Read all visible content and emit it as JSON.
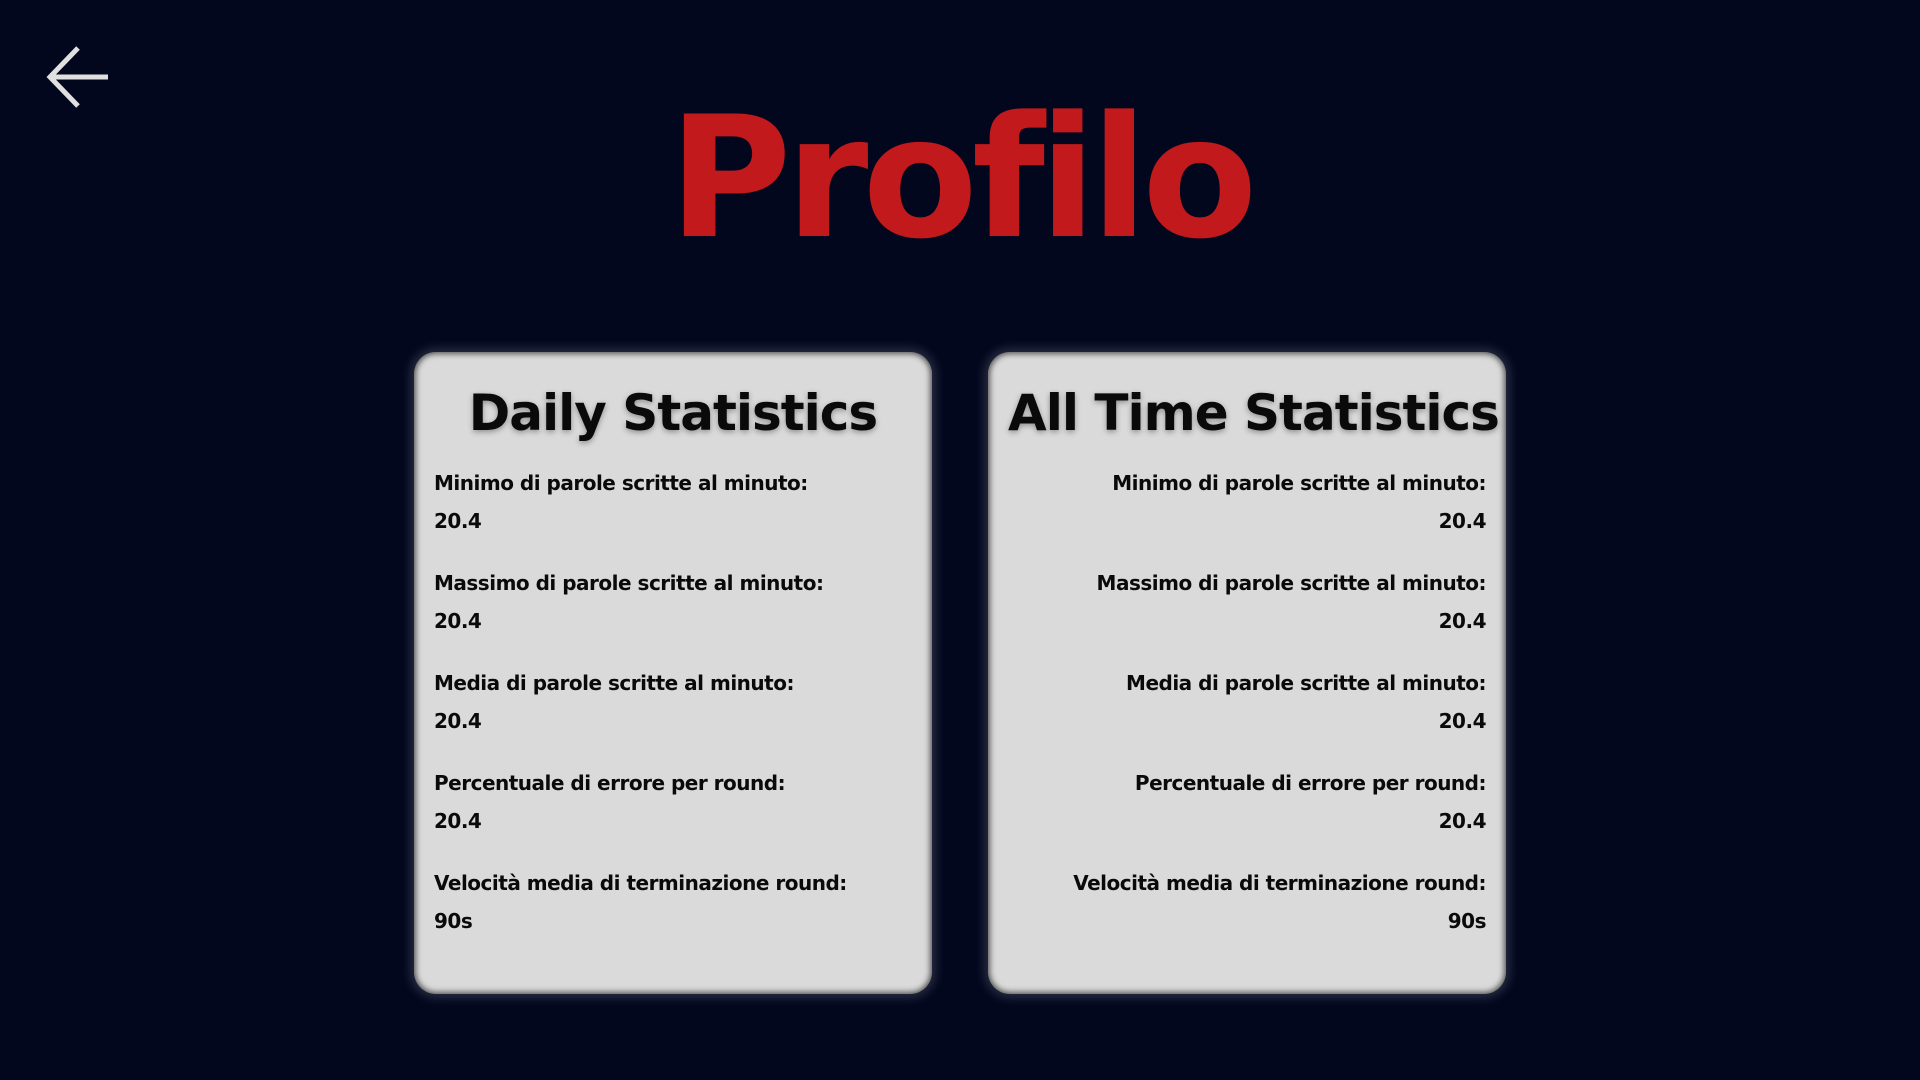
{
  "colors": {
    "background": "#03071e",
    "title": "#c1191c",
    "card": "#dadada",
    "back_icon": "#e0e0e0"
  },
  "header": {
    "back_icon": "arrow-left-icon",
    "title": "Profilo"
  },
  "daily": {
    "title": "Daily Statistics",
    "stats": [
      {
        "label": "Minimo di parole scritte al minuto:",
        "value": "20.4"
      },
      {
        "label": "Massimo di parole scritte al minuto:",
        "value": "20.4"
      },
      {
        "label": "Media di parole scritte al minuto:",
        "value": "20.4"
      },
      {
        "label": "Percentuale di errore per round:",
        "value": "20.4"
      },
      {
        "label": "Velocità media di terminazione round:",
        "value": "90s"
      }
    ]
  },
  "all_time": {
    "title": "All Time Statistics",
    "stats": [
      {
        "label": "Minimo di parole scritte al minuto:",
        "value": "20.4"
      },
      {
        "label": "Massimo di parole scritte al minuto:",
        "value": "20.4"
      },
      {
        "label": "Media di parole scritte al minuto:",
        "value": "20.4"
      },
      {
        "label": "Percentuale di errore per round:",
        "value": "20.4"
      },
      {
        "label": "Velocità media di terminazione round:",
        "value": "90s"
      }
    ]
  }
}
